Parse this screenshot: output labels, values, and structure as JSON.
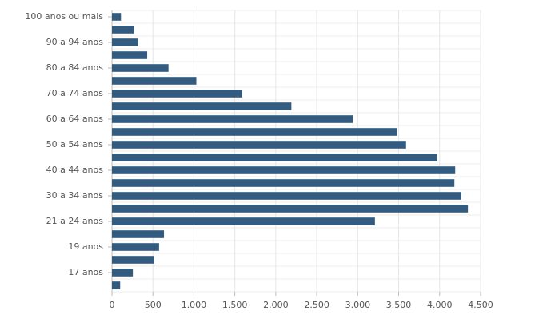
{
  "chart_data": {
    "type": "hbar",
    "categories": [
      "100 anos ou mais",
      null,
      "90 a 94 anos",
      null,
      "80 a 84 anos",
      null,
      "70 a 74 anos",
      null,
      "60 a 64 anos",
      null,
      "50 a 54 anos",
      null,
      "40 a 44 anos",
      null,
      "30 a 34 anos",
      null,
      "21 a 24 anos",
      null,
      "19 anos",
      null,
      "17 anos",
      null
    ],
    "values": [
      110,
      270,
      320,
      430,
      690,
      1030,
      1590,
      2190,
      2940,
      3480,
      3590,
      3970,
      4190,
      4180,
      4265,
      4345,
      3210,
      635,
      575,
      515,
      255,
      100
    ],
    "color": "#335b80",
    "xlim": [
      0,
      4500
    ],
    "xticks": [
      0,
      500,
      {
        "value": 1000,
        "label": "1.000"
      },
      {
        "value": 1500,
        "label": "1.500"
      },
      {
        "value": 2000,
        "label": "2.000"
      },
      {
        "value": 2500,
        "label": "2.500"
      },
      {
        "value": 3000,
        "label": "3.000"
      },
      {
        "value": 3500,
        "label": "3.500"
      },
      {
        "value": 4000,
        "label": "4.000"
      },
      {
        "value": 4500,
        "label": "4.500"
      }
    ],
    "grid": true
  }
}
